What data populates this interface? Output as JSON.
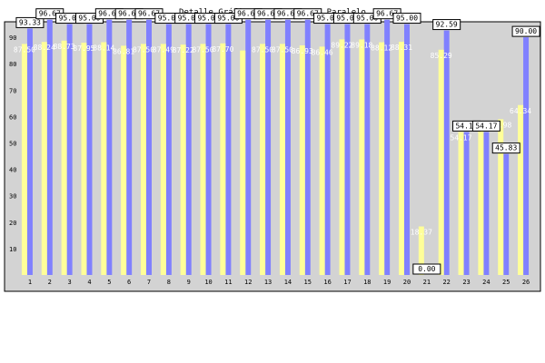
{
  "chart_data": {
    "type": "bar",
    "title": "Detalle Gráfico por Preguntas Paralelo",
    "xlabel": "",
    "ylabel": "",
    "ylim": [
      0,
      100
    ],
    "yticks": [
      10,
      20,
      30,
      40,
      50,
      60,
      70,
      80,
      90
    ],
    "grid": false,
    "legend": "none",
    "categories": [
      "1",
      "2",
      "3",
      "4",
      "5",
      "6",
      "7",
      "8",
      "9",
      "10",
      "11",
      "12",
      "13",
      "14",
      "15",
      "16",
      "17",
      "18",
      "19",
      "20",
      "21",
      "22",
      "23",
      "24",
      "25",
      "26"
    ],
    "series": [
      {
        "color": "#8080ff",
        "values": [
          93.33,
          96.67,
          95.0,
          95.0,
          96.67,
          96.67,
          96.67,
          95.0,
          95.0,
          95.0,
          95.0,
          96.67,
          96.67,
          96.67,
          96.67,
          95.0,
          95.0,
          95.0,
          96.67,
          95.0,
          0.0,
          92.59,
          54.17,
          54.17,
          45.83,
          90.0
        ],
        "labels": [
          "93.33",
          "96.67",
          "95.00",
          "95.00",
          "96.67",
          "96.67",
          "96.67",
          "95.00",
          "95.00",
          "95.00",
          "95.00",
          "96.67",
          "96.67",
          "96.67",
          "96.67",
          "95.00",
          "95.00",
          "95.00",
          "96.67",
          "95.00",
          "0.00",
          "92.59",
          "54.17",
          "54.17",
          "45.83",
          "90.00"
        ]
      },
      {
        "color": "#ffff99",
        "values": [
          87.5,
          88.24,
          88.73,
          87.95,
          88.14,
          86.81,
          87.5,
          87.49,
          87.22,
          87.5,
          87.7,
          85.0,
          87.5,
          87.5,
          86.93,
          86.46,
          89.22,
          89.18,
          88.12,
          88.31,
          18.37,
          85.29,
          54.17,
          57.89,
          58.98,
          64.34
        ],
        "labels": [
          "87.50",
          "88.24",
          "88.73",
          "87.95",
          "88.14",
          "86.81",
          "87.50",
          "87.49",
          "87.22",
          "87.50",
          "87.70",
          "",
          "87.50",
          "87.50",
          "86.93",
          "86.46",
          "89.22",
          "89.18",
          "88.12",
          "88.31",
          "18.37",
          "85.29",
          "54.17",
          "57.89",
          "58.98",
          "64.34"
        ]
      }
    ]
  }
}
